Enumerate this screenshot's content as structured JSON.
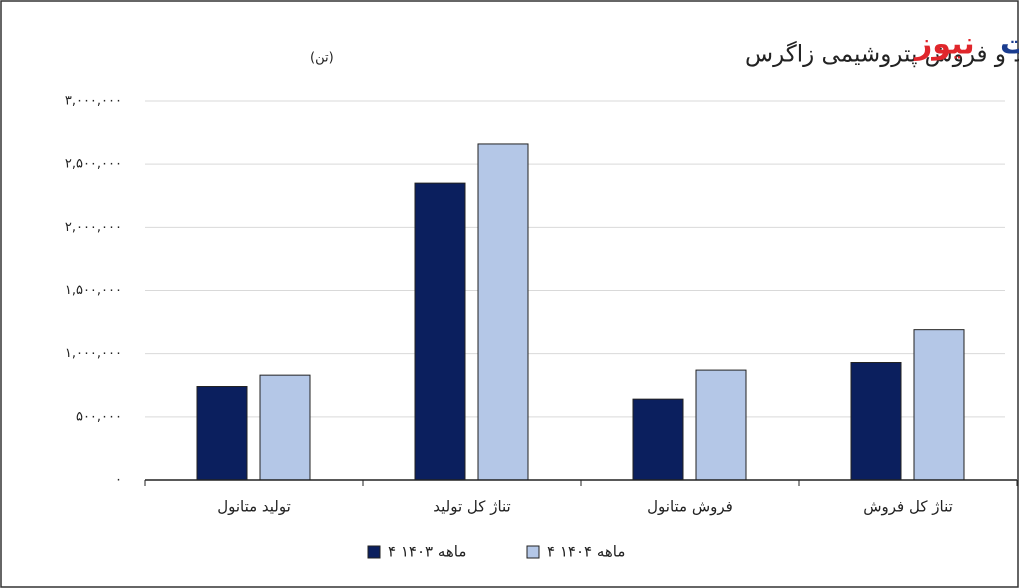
{
  "brand": {
    "part1": "تجارت",
    "part2": "نیوز"
  },
  "chart_data": {
    "type": "bar",
    "title": "روند تولید و فروش پتروشیمی زاگرس",
    "unit": "(تن)",
    "categories": [
      "تولید متانول",
      "تناژ کل تولید",
      "فروش متانول",
      "تناژ کل فروش"
    ],
    "series": [
      {
        "name": "۴ ماهه ۱۴۰۳",
        "color": "#0b1f5e",
        "values": [
          740000,
          2350000,
          640000,
          930000
        ]
      },
      {
        "name": "۴ ماهه ۱۴۰۴",
        "color": "#b4c7e7",
        "values": [
          830000,
          2660000,
          870000,
          1190000
        ]
      }
    ],
    "ylim": [
      0,
      3000000
    ],
    "yticks": [
      {
        "value": 0,
        "label": "۰"
      },
      {
        "value": 500000,
        "label": "۵۰۰,۰۰۰"
      },
      {
        "value": 1000000,
        "label": "۱,۰۰۰,۰۰۰"
      },
      {
        "value": 1500000,
        "label": "۱,۵۰۰,۰۰۰"
      },
      {
        "value": 2000000,
        "label": "۲,۰۰۰,۰۰۰"
      },
      {
        "value": 2500000,
        "label": "۲,۵۰۰,۰۰۰"
      },
      {
        "value": 3000000,
        "label": "۳,۰۰۰,۰۰۰"
      }
    ],
    "grid": true,
    "legend": "bottom"
  }
}
